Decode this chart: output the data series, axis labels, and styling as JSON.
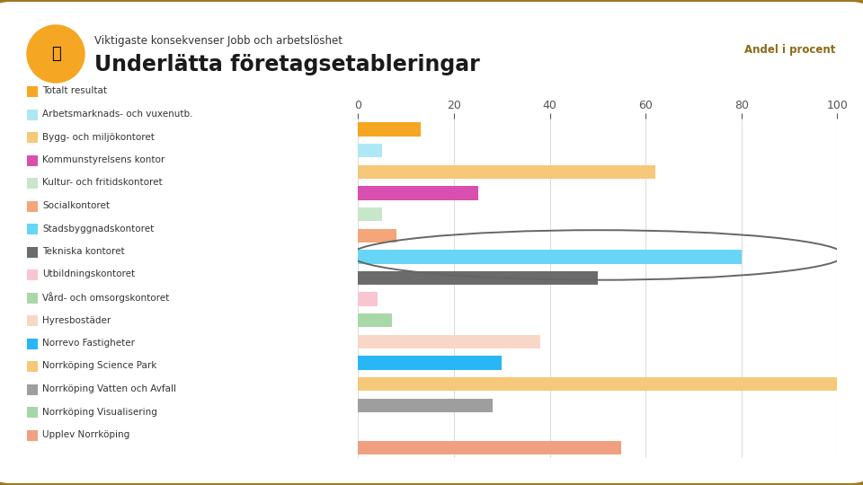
{
  "title_small": "Viktigaste konsekvenser Jobb och arbetslöshet",
  "title_large": "Underlätta företagsetableringar",
  "axis_label": "Andel i procent",
  "categories": [
    "Totalt resultat",
    "Arbetsmarknads- och vuxenutb.",
    "Bygg- och miljökontoret",
    "Kommunstyrelsens kontor",
    "Kultur- och fritidskontoret",
    "Socialkontoret",
    "Stadsbyggnadskontoret",
    "Tekniska kontoret",
    "Utbildningskontoret",
    "Vård- och omsorgskontoret",
    "Hyresbostäder",
    "Norrevo Fastigheter",
    "Norrköping Science Park",
    "Norrköping Vatten och Avfall",
    "Norrköping Visualisering",
    "Upplev Norrköping"
  ],
  "values": [
    13,
    5,
    62,
    25,
    5,
    8,
    80,
    50,
    4,
    7,
    38,
    30,
    100,
    28,
    0,
    55
  ],
  "colors": [
    "#F5A623",
    "#ADE8F4",
    "#F5C87A",
    "#D94FAE",
    "#C8E6C9",
    "#F4A57A",
    "#67D5F5",
    "#6B6B6B",
    "#F9C5D1",
    "#A8D8A8",
    "#F9D7C8",
    "#29B6F6",
    "#F5C87A",
    "#9E9E9E",
    "#A5D6A7",
    "#F0A080"
  ],
  "outer_bg": "#A07820",
  "card_bg": "#FFFFFF",
  "xlim": [
    0,
    100
  ],
  "xticks": [
    0,
    20,
    40,
    60,
    80,
    100
  ],
  "axis_label_color": "#8B6914",
  "grid_color": "#DDDDDD",
  "circle_color": "#F5A623",
  "title_small_color": "#333333",
  "title_large_color": "#1A1A1A",
  "legend_text_color": "#333333",
  "ellipse_color": "#666666"
}
